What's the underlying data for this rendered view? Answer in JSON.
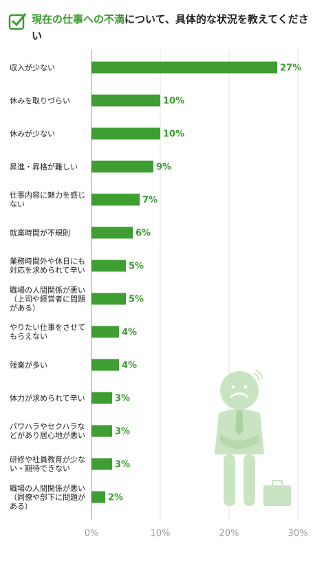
{
  "chart_data": {
    "type": "bar",
    "orientation": "horizontal",
    "title_highlight": "現在の仕事への不満",
    "title_rest": "について、具体的な状況を教えてください",
    "categories": [
      "収入が少ない",
      "休みを取りづらい",
      "休みが少ない",
      "昇進・昇格が難しい",
      "仕事内容に魅力を感じない",
      "就業時間が不規則",
      "業務時間外や休日にも対応を求められて辛い",
      "職場の人間関係が悪い（上司や経営者に問題がある）",
      "やりたい仕事をさせてもらえない",
      "残業が多い",
      "体力が求められて辛い",
      "パワハラやセクハラなどがあり居心地が悪い",
      "研修や社員教育が少ない・期待できない",
      "職場の人間関係が悪い（同僚や部下に問題がある）"
    ],
    "values": [
      27,
      10,
      10,
      9,
      7,
      6,
      5,
      5,
      4,
      4,
      3,
      3,
      3,
      2
    ],
    "value_labels": [
      "27%",
      "10%",
      "10%",
      "9%",
      "7%",
      "6%",
      "5%",
      "5%",
      "4%",
      "4%",
      "3%",
      "3%",
      "3%",
      "2%"
    ],
    "color": "#3f9e32",
    "xlim": [
      0,
      30
    ],
    "xticks": [
      {
        "value": 0,
        "label": "0%"
      },
      {
        "value": 10,
        "label": "10%"
      },
      {
        "value": 20,
        "label": "20%"
      },
      {
        "value": 30,
        "label": "30%"
      }
    ],
    "grid": true
  }
}
